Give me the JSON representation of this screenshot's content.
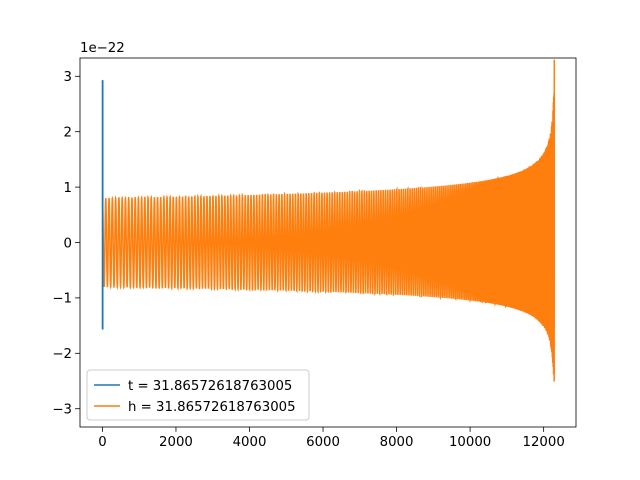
{
  "chart_data": {
    "type": "line",
    "title": "",
    "xlabel": "",
    "ylabel": "",
    "offset_text": "1e−22",
    "xlim": [
      -610,
      12880
    ],
    "ylim": [
      -3.33,
      3.33
    ],
    "xticks": [
      0,
      2000,
      4000,
      6000,
      8000,
      10000,
      12000
    ],
    "xtick_labels": [
      "0",
      "2000",
      "4000",
      "6000",
      "8000",
      "10000",
      "12000"
    ],
    "yticks": [
      -3,
      -2,
      -1,
      0,
      1,
      2,
      3
    ],
    "ytick_labels": [
      "−3",
      "−2",
      "−1",
      "0",
      "1",
      "2",
      "3"
    ],
    "grid": false,
    "legend_position": "lower-left",
    "series": [
      {
        "name": "t = 31.86572618763005",
        "color": "#1f77b4",
        "description_values": {
          "x_range": [
            0,
            10
          ],
          "y_min": -1.57,
          "y_max": 2.93
        }
      },
      {
        "name": "h = 31.86572618763005",
        "color": "#ff7f0e",
        "description_values": {
          "x_range": [
            0,
            12290
          ],
          "start_amplitude": 0.8,
          "end_amplitude_pos": 3.3,
          "end_amplitude_neg": -3.02,
          "approx_cycles": 215
        }
      }
    ]
  }
}
